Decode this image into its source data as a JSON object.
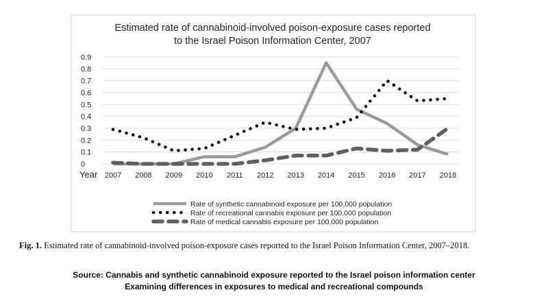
{
  "chart_data": {
    "type": "line",
    "title_lines": [
      "Estimated rate of cannabinoid-involved poison-exposure cases reported",
      "to the Israel Poison Information Center, 2007"
    ],
    "xlabel": "Year",
    "ylabel": "",
    "ylim": [
      0,
      0.9
    ],
    "yticks": [
      "0",
      "0.1",
      "0.2",
      "0.3",
      "0.4",
      "0.5",
      "0.6",
      "0.7",
      "0.8",
      "0.9"
    ],
    "x": [
      "2007",
      "2008",
      "2009",
      "2010",
      "2011",
      "2012",
      "2013",
      "2014",
      "2015",
      "2016",
      "2017",
      "2018"
    ],
    "grid": true,
    "legend_position": "bottom",
    "series": [
      {
        "name": "Rate of synthetic cannabinoid exposure per 100,000 population",
        "style": "solid",
        "color": "#9a9a9a",
        "values": [
          0,
          0,
          0,
          0.06,
          0.06,
          0.14,
          0.3,
          0.85,
          0.46,
          0.34,
          0.16,
          0.08
        ]
      },
      {
        "name": "Rate of recreational cannabis exposure per 100,000 population",
        "style": "dotted",
        "color": "#000000",
        "values": [
          0.29,
          0.22,
          0.11,
          0.13,
          0.24,
          0.35,
          0.29,
          0.3,
          0.39,
          0.7,
          0.53,
          0.55
        ]
      },
      {
        "name": "Rate of medical cannabis exposure per 100,000 population",
        "style": "dashed",
        "color": "#5f5f5f",
        "values": [
          0.01,
          0,
          0,
          0,
          0,
          0.03,
          0.07,
          0.07,
          0.13,
          0.11,
          0.12,
          0.3
        ]
      }
    ]
  },
  "caption": {
    "label": "Fig. 1.",
    "text": "Estimated rate of cannabinoid-involved poison-exposure cases reported to the Israel Poison Information Center, 2007–2018."
  },
  "source": {
    "line1": "Source: Cannabis and synthetic cannabinoid exposure reported to the Israel poison information center",
    "line2": "Examining differences in exposures to medical and recreational compounds"
  }
}
